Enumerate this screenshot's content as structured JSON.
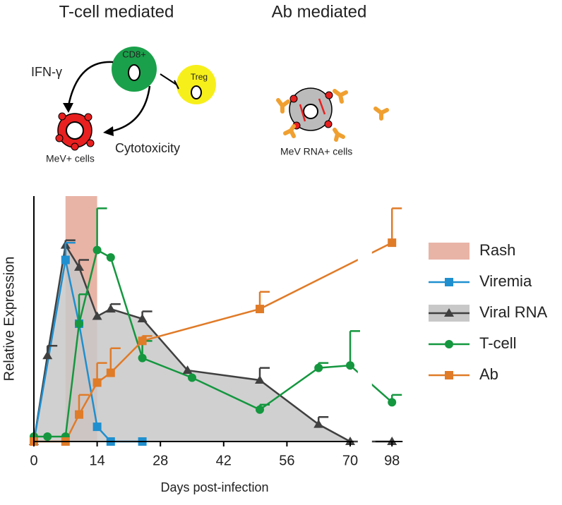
{
  "diagram": {
    "left_title": "T-cell mediated",
    "right_title": "Ab mediated",
    "cd8": "CD8+",
    "treg": "Treg",
    "ifn": "IFN-γ",
    "cytotoxicity": "Cytotoxicity",
    "mev_cells": "MeV+ cells",
    "rna_cells": "MeV RNA+ cells"
  },
  "chart_data": {
    "type": "line",
    "xlabel": "Days post-infection",
    "ylabel": "Relative Expression",
    "xlim": [
      0,
      100
    ],
    "xbreak": [
      72,
      92
    ],
    "ylim": [
      0,
      1
    ],
    "xticks": [
      0,
      14,
      28,
      42,
      56,
      70,
      98
    ],
    "shade": {
      "name": "Rash",
      "color": "#e8b4a6",
      "x": [
        7,
        14
      ]
    },
    "series": [
      {
        "name": "Viral RNA",
        "color": "#404040",
        "marker": "triangle",
        "area": "#c8c8c8",
        "x": [
          0,
          3,
          7,
          10,
          14,
          17,
          24,
          34,
          50,
          63,
          70,
          98
        ],
        "values": [
          0,
          0.35,
          0.8,
          0.71,
          0.51,
          0.54,
          0.5,
          0.29,
          0.25,
          0.07,
          0,
          0
        ],
        "errors": [
          null,
          0.04,
          0.02,
          0.03,
          null,
          0.02,
          0.03,
          null,
          0.05,
          0.03,
          null,
          null
        ]
      },
      {
        "name": "Viremia",
        "color": "#1f8fcf",
        "marker": "square",
        "x": [
          0,
          7,
          10,
          14,
          17,
          24
        ],
        "values": [
          0,
          0.74,
          0.48,
          0.06,
          0,
          0
        ],
        "errors": [
          null,
          0.07,
          null,
          null,
          null,
          null
        ]
      },
      {
        "name": "T-cell",
        "color": "#14973f",
        "marker": "circle",
        "x": [
          0,
          3,
          7,
          10,
          14,
          17,
          24,
          35,
          50,
          63,
          70,
          98
        ],
        "values": [
          0.02,
          0.02,
          0.02,
          0.48,
          0.78,
          0.75,
          0.34,
          0.26,
          0.13,
          0.3,
          0.31,
          0.16
        ],
        "errors": [
          null,
          null,
          null,
          0.12,
          0.17,
          null,
          0.07,
          null,
          0.02,
          0.02,
          0.14,
          0.03
        ]
      },
      {
        "name": "Ab",
        "color": "#e07b28",
        "marker": "square",
        "x": [
          0,
          7,
          10,
          14,
          17,
          24,
          50,
          98
        ],
        "values": [
          0,
          0,
          0.11,
          0.24,
          0.28,
          0.41,
          0.54,
          0.81
        ],
        "errors": [
          null,
          null,
          0.08,
          0.08,
          0.1,
          0.02,
          0.07,
          0.14
        ]
      }
    ],
    "legend_order": [
      1,
      0,
      2,
      3
    ]
  }
}
